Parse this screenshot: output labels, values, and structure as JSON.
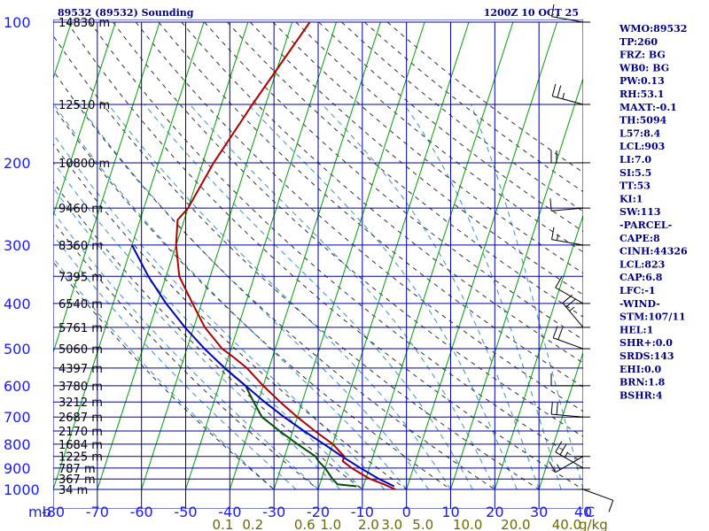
{
  "header": {
    "station": "89532 (89532) Sounding",
    "time": "1200Z 10 OCT 25"
  },
  "indices": [
    "WMO:89532",
    "TP:260",
    "FRZ: BG",
    "WB0: BG",
    "PW:0.13",
    "RH:53.1",
    "MAXT:-0.1",
    "TH:5094",
    "L57:8.4",
    "LCL:903",
    "LI:7.0",
    "SI:5.5",
    "TT:53",
    "KI:1",
    "SW:113",
    "-PARCEL-",
    "CAPE:8",
    "CINH:44326",
    "LCL:823",
    "CAP:6.8",
    "LFC:-1",
    "-WIND-",
    "STM:107/11",
    "HEL:1",
    "SHR+:0.0",
    "SRDS:143",
    "EHI:0.0",
    "BRN:1.8",
    "BSHR:4"
  ],
  "colors": {
    "temperature": "#b00000",
    "dewpoint": "#005000",
    "parcel": "#0000c0",
    "isotherm": "#00a000",
    "isobar": "#0000a0",
    "dry_adiabat": "#303030",
    "moist_adiabat": "#3a8fd0",
    "mixing_ratio": "#6b6b00"
  },
  "chart_data": {
    "type": "line",
    "diagram": "skew-t",
    "xlabel": "",
    "ylabel": "mb",
    "x_unit_label": "C",
    "mixing_ratio_unit": "g/kg",
    "temperature_ticks": [
      "-80",
      "-70",
      "-60",
      "-50",
      "-40",
      "-30",
      "-20",
      "-10",
      "0",
      "10",
      "20",
      "30",
      "40"
    ],
    "pressure_levels": [
      {
        "p": 100,
        "label": "100",
        "height": "14830 m"
      },
      {
        "p": 150,
        "label": "",
        "height": "12510 m"
      },
      {
        "p": 200,
        "label": "200",
        "height": "10800 m"
      },
      {
        "p": 250,
        "label": "",
        "height": "9460 m"
      },
      {
        "p": 300,
        "label": "300",
        "height": "8360 m"
      },
      {
        "p": 350,
        "label": "",
        "height": "7395 m"
      },
      {
        "p": 400,
        "label": "400",
        "height": "6540 m"
      },
      {
        "p": 450,
        "label": "",
        "height": "5761 m"
      },
      {
        "p": 500,
        "label": "500",
        "height": "5060 m"
      },
      {
        "p": 550,
        "label": "",
        "height": "4397 m"
      },
      {
        "p": 600,
        "label": "600",
        "height": "3780 m"
      },
      {
        "p": 650,
        "label": "",
        "height": "3212 m"
      },
      {
        "p": 700,
        "label": "700",
        "height": "2687 m"
      },
      {
        "p": 750,
        "label": "",
        "height": "2170 m"
      },
      {
        "p": 800,
        "label": "800",
        "height": "1684 m"
      },
      {
        "p": 850,
        "label": "",
        "height": "1225 m"
      },
      {
        "p": 900,
        "label": "900",
        "height": "787 m"
      },
      {
        "p": 950,
        "label": "",
        "height": "367 m"
      },
      {
        "p": 1000,
        "label": "1000",
        "height": "34 m"
      }
    ],
    "mixing_ratio_labels": [
      "0.1",
      "0.2",
      "0.6",
      "1.0",
      "2.0",
      "3.0",
      "5.0",
      "10.0",
      "20.0",
      "40.0"
    ],
    "mixing_ratio_values": [
      0.1,
      0.2,
      0.6,
      1.0,
      2.0,
      3.0,
      5.0,
      10.0,
      20.0,
      40.0
    ],
    "series": [
      {
        "key": "temperature",
        "points": [
          {
            "p": 1000,
            "t": -2.5
          },
          {
            "p": 975,
            "t": -5.5
          },
          {
            "p": 950,
            "t": -9
          },
          {
            "p": 925,
            "t": -11.5
          },
          {
            "p": 900,
            "t": -14
          },
          {
            "p": 870,
            "t": -16.5
          },
          {
            "p": 850,
            "t": -16.5
          },
          {
            "p": 800,
            "t": -20
          },
          {
            "p": 750,
            "t": -25
          },
          {
            "p": 700,
            "t": -30
          },
          {
            "p": 650,
            "t": -35
          },
          {
            "p": 600,
            "t": -40
          },
          {
            "p": 550,
            "t": -45
          },
          {
            "p": 520,
            "t": -49
          },
          {
            "p": 500,
            "t": -52
          },
          {
            "p": 450,
            "t": -57.5
          },
          {
            "p": 400,
            "t": -62
          },
          {
            "p": 350,
            "t": -67
          },
          {
            "p": 300,
            "t": -70
          },
          {
            "p": 265,
            "t": -71.5
          },
          {
            "p": 250,
            "t": -70
          },
          {
            "p": 200,
            "t": -67.5
          },
          {
            "p": 150,
            "t": -63
          },
          {
            "p": 100,
            "t": -56
          }
        ]
      },
      {
        "key": "dewpoint",
        "points": [
          {
            "p": 985,
            "t": -11.5
          },
          {
            "p": 975,
            "t": -16
          },
          {
            "p": 950,
            "t": -17.5
          },
          {
            "p": 900,
            "t": -20
          },
          {
            "p": 870,
            "t": -22
          },
          {
            "p": 850,
            "t": -23
          },
          {
            "p": 800,
            "t": -28
          },
          {
            "p": 750,
            "t": -33
          },
          {
            "p": 700,
            "t": -38
          },
          {
            "p": 650,
            "t": -41
          },
          {
            "p": 600,
            "t": -44
          },
          {
            "p": 575,
            "t": -47
          },
          {
            "p": 550,
            "t": -50
          }
        ]
      },
      {
        "key": "parcel",
        "points": [
          {
            "p": 985,
            "t": -3
          },
          {
            "p": 950,
            "t": -7
          },
          {
            "p": 900,
            "t": -12
          },
          {
            "p": 850,
            "t": -17
          },
          {
            "p": 800,
            "t": -22
          },
          {
            "p": 750,
            "t": -27.5
          },
          {
            "p": 700,
            "t": -33
          },
          {
            "p": 650,
            "t": -38.5
          },
          {
            "p": 600,
            "t": -44
          },
          {
            "p": 550,
            "t": -50
          },
          {
            "p": 500,
            "t": -56
          },
          {
            "p": 450,
            "t": -62
          },
          {
            "p": 400,
            "t": -68
          },
          {
            "p": 350,
            "t": -74
          },
          {
            "p": 300,
            "t": -80
          }
        ]
      }
    ],
    "wind_barbs": [
      {
        "p": 100,
        "dir": 280,
        "kt": 15
      },
      {
        "p": 150,
        "dir": 285,
        "kt": 25
      },
      {
        "p": 200,
        "dir": 270,
        "kt": 20
      },
      {
        "p": 250,
        "dir": 265,
        "kt": 10
      },
      {
        "p": 300,
        "dir": 280,
        "kt": 15
      },
      {
        "p": 400,
        "dir": 300,
        "kt": 10
      },
      {
        "p": 450,
        "dir": 320,
        "kt": 25
      },
      {
        "p": 500,
        "dir": 290,
        "kt": 20
      },
      {
        "p": 600,
        "dir": 270,
        "kt": 10
      },
      {
        "p": 700,
        "dir": 275,
        "kt": 20
      },
      {
        "p": 850,
        "dir": 240,
        "kt": 15
      },
      {
        "p": 900,
        "dir": 300,
        "kt": 25
      },
      {
        "p": 1000,
        "dir": 110,
        "kt": 10
      }
    ]
  }
}
